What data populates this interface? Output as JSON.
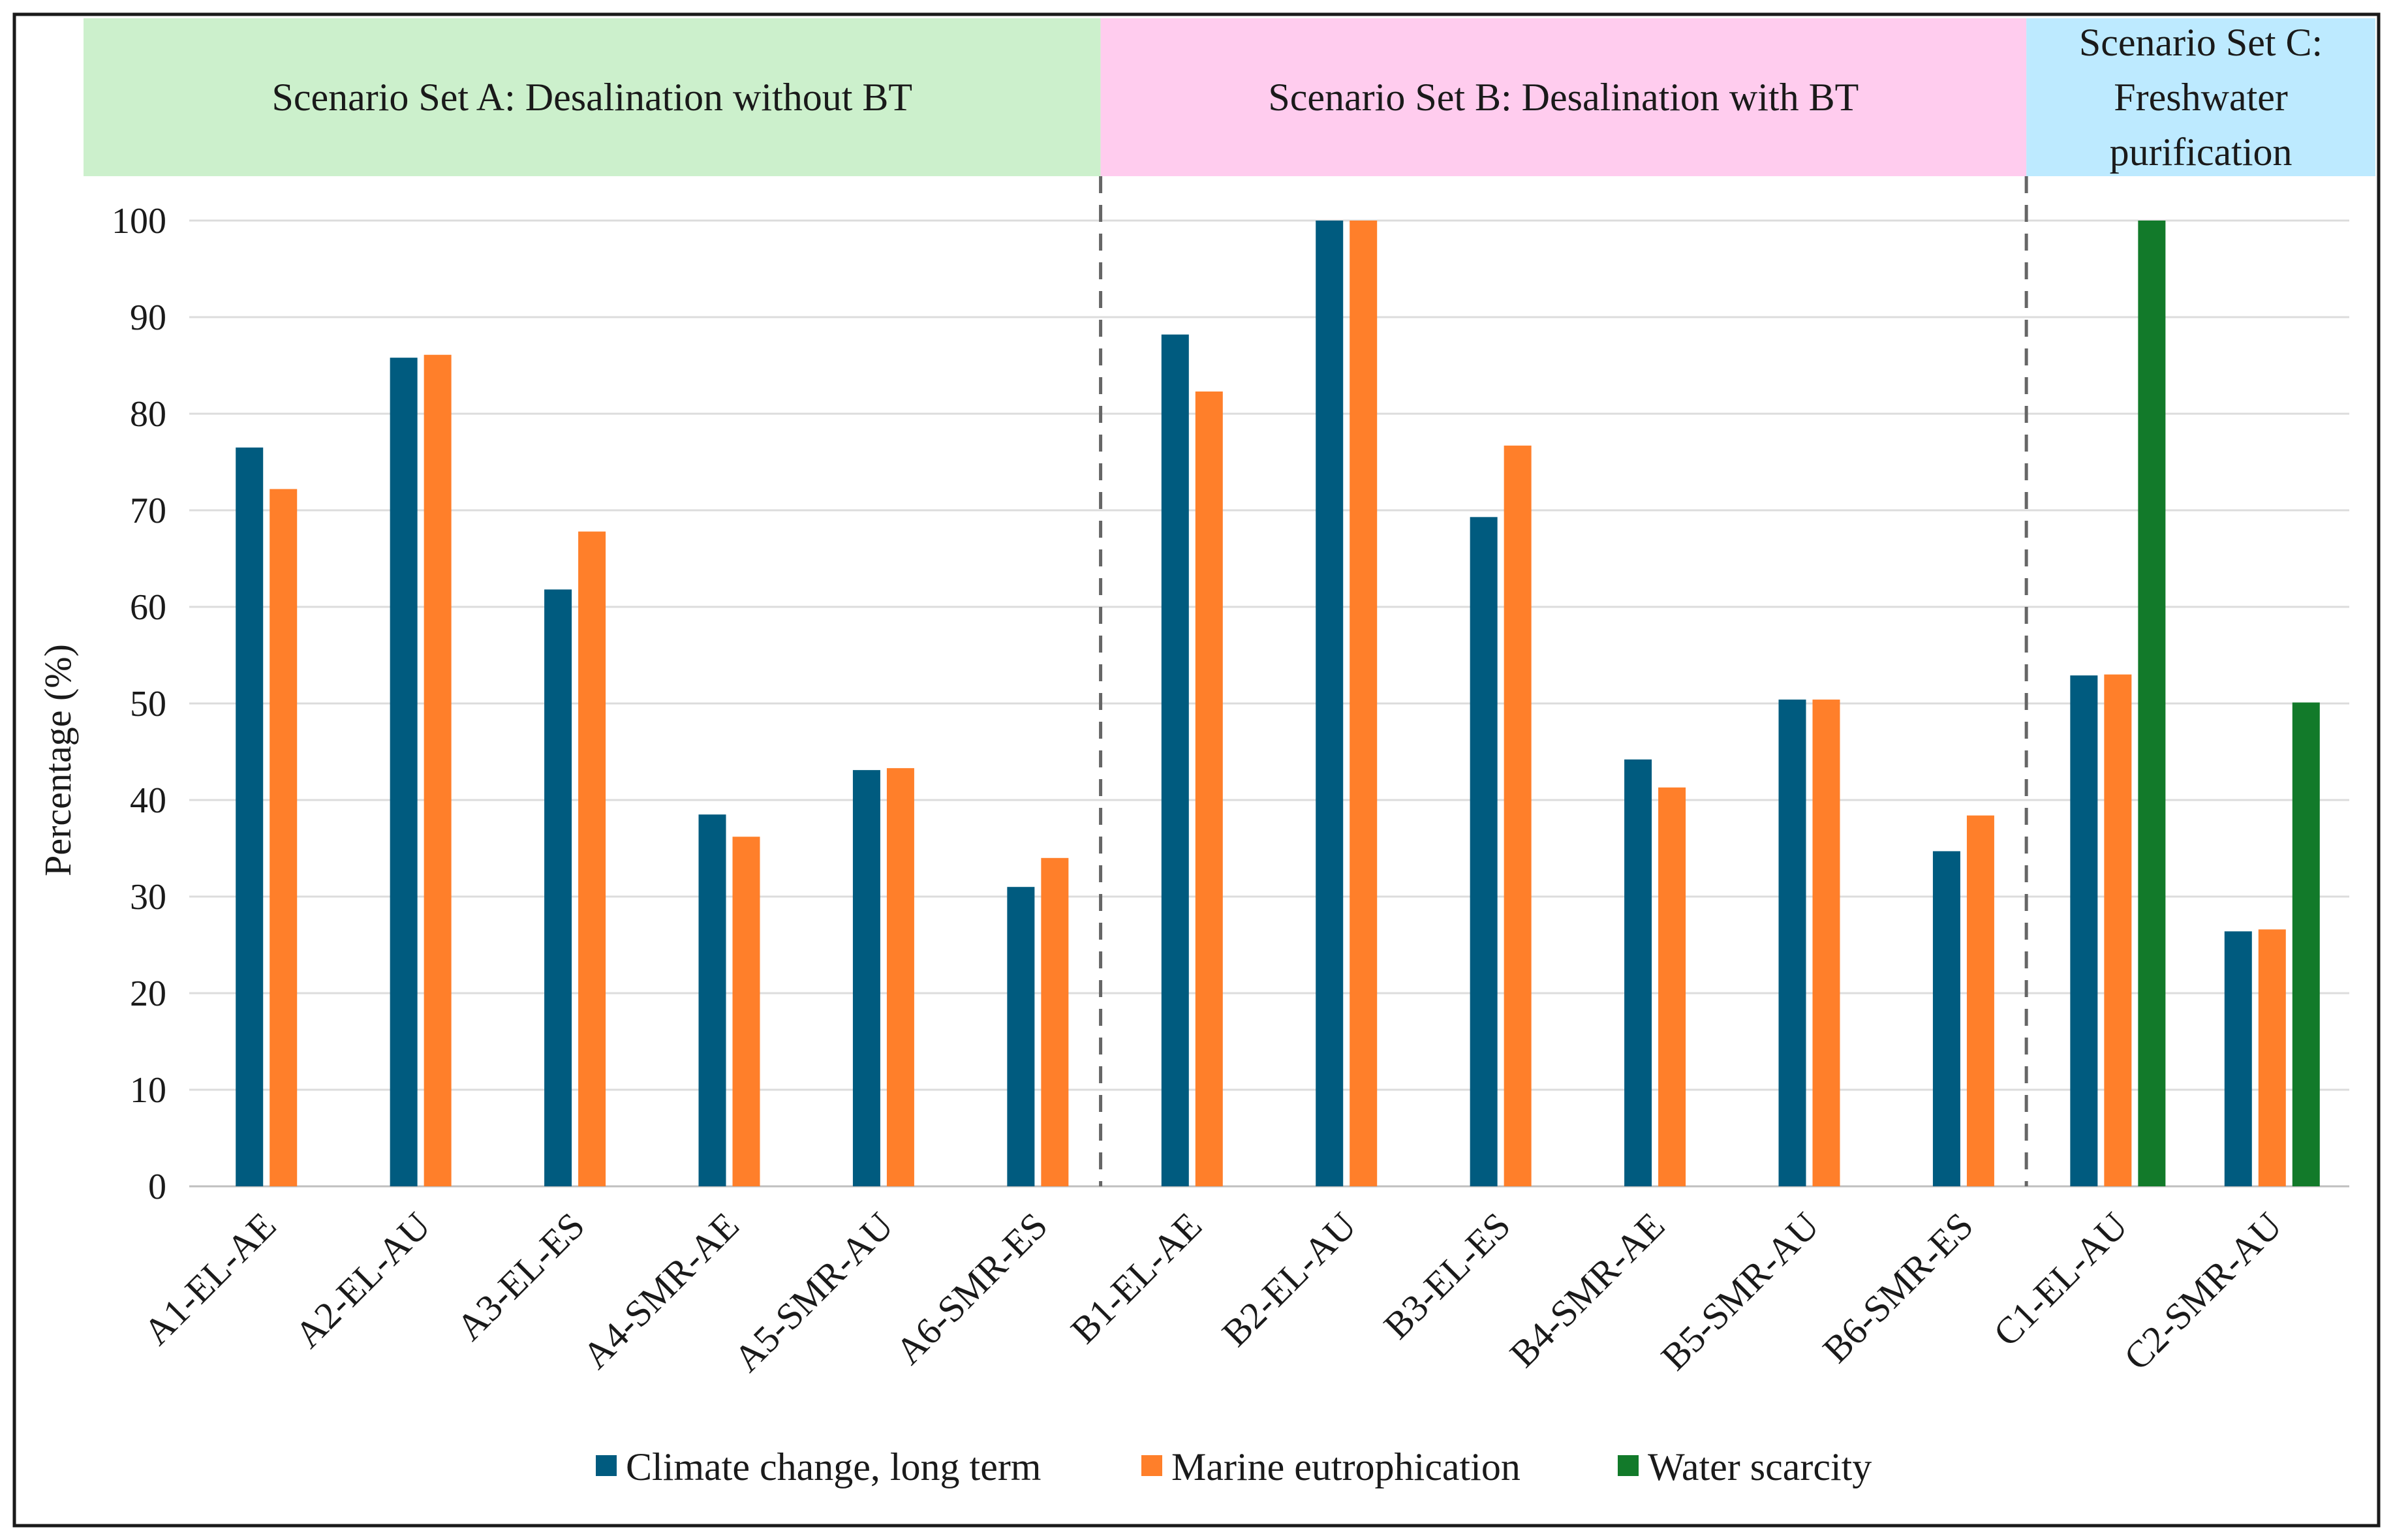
{
  "chart_data": {
    "type": "bar",
    "title": "",
    "xlabel": "",
    "ylabel": "Percentage (%)",
    "ylim": [
      0,
      100
    ],
    "yticks": [
      0,
      10,
      20,
      30,
      40,
      50,
      60,
      70,
      80,
      90,
      100
    ],
    "grid": true,
    "legend_position": "bottom",
    "categories": [
      "A1-EL-AE",
      "A2-EL-AU",
      "A3-EL-ES",
      "A4-SMR-AE",
      "A5-SMR-AU",
      "A6-SMR-ES",
      "B1-EL-AE",
      "B2-EL-AU",
      "B3-EL-ES",
      "B4-SMR-AE",
      "B5-SMR-AU",
      "B6-SMR-ES",
      "C1-EL-AU",
      "C2-SMR-AU"
    ],
    "series": [
      {
        "name": "Climate change, long term",
        "color": "#005b7f",
        "values": [
          76.5,
          85.8,
          61.8,
          38.5,
          43.1,
          31.0,
          88.2,
          100,
          69.3,
          44.2,
          50.4,
          34.7,
          52.9,
          26.4
        ]
      },
      {
        "name": "Marine eutrophication",
        "color": "#ff7f2a",
        "values": [
          72.2,
          86.1,
          67.8,
          36.2,
          43.3,
          34.0,
          82.3,
          100,
          76.7,
          41.3,
          50.4,
          38.4,
          53.0,
          26.6
        ]
      },
      {
        "name": "Water scarcity",
        "color": "#127a2a",
        "values": [
          null,
          null,
          null,
          null,
          null,
          null,
          null,
          null,
          null,
          null,
          null,
          null,
          100,
          50.1
        ]
      }
    ],
    "scenario_sets": [
      {
        "label": "Scenario Set A: Desalination without BT",
        "color": "#ccf0cc",
        "start": 0,
        "end": 5
      },
      {
        "label": "Scenario Set B: Desalination with BT",
        "color": "#ffccee",
        "start": 6,
        "end": 11
      },
      {
        "label_lines": [
          "Scenario Set C:",
          "Freshwater",
          "purification"
        ],
        "color": "#bdeaff",
        "start": 12,
        "end": 13
      }
    ]
  }
}
